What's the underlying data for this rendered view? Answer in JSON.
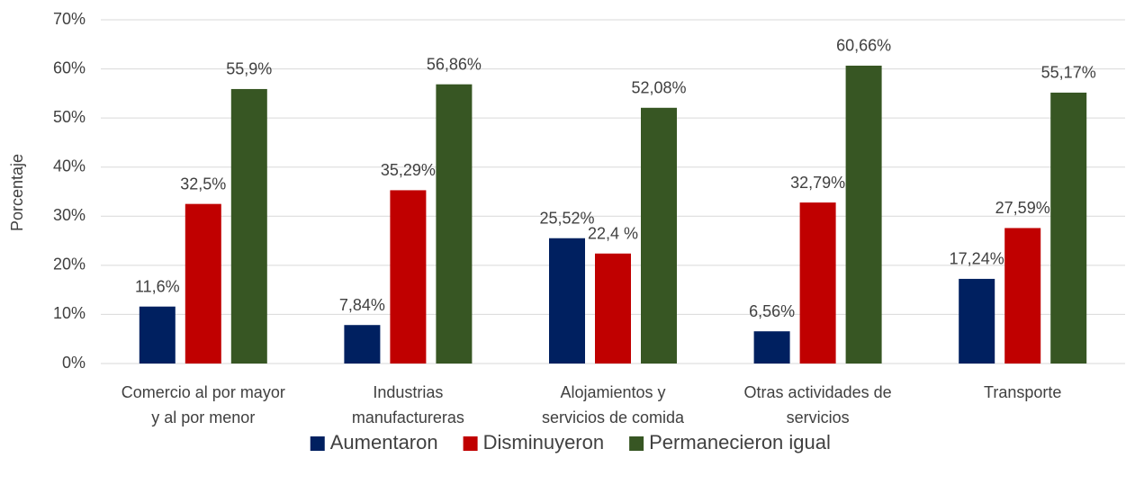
{
  "chart_data": {
    "type": "bar",
    "y_axis_label": "Porcentaje",
    "categories": [
      [
        "Comercio al por mayor",
        "y al por menor"
      ],
      [
        "Industrias",
        "manufactureras"
      ],
      [
        "Alojamientos y",
        "servicios de comida"
      ],
      [
        "Otras actividades de",
        "servicios"
      ],
      [
        "Transporte"
      ]
    ],
    "series": [
      {
        "name": "Aumentaron",
        "color": "#002060",
        "values": [
          11.6,
          7.84,
          25.52,
          6.56,
          17.24
        ],
        "value_labels": [
          "11,6%",
          "7,84%",
          "25,52%",
          "6,56%",
          "17,24%"
        ]
      },
      {
        "name": "Disminuyeron",
        "color": "#c00000",
        "values": [
          32.5,
          35.29,
          22.4,
          32.79,
          27.59
        ],
        "value_labels": [
          "32,5%",
          "35,29%",
          "22,4 %",
          "32,79%",
          "27,59%"
        ]
      },
      {
        "name": "Permanecieron igual",
        "color": "#375623",
        "values": [
          55.9,
          56.86,
          52.08,
          60.66,
          55.17
        ],
        "value_labels": [
          "55,9%",
          "56,86%",
          "52,08%",
          "60,66%",
          "55,17%"
        ]
      }
    ],
    "ylim": [
      0,
      70
    ],
    "yticks": [
      {
        "value": 0,
        "label": "0%"
      },
      {
        "value": 10,
        "label": "10%"
      },
      {
        "value": 20,
        "label": "20%"
      },
      {
        "value": 30,
        "label": "30%"
      },
      {
        "value": 40,
        "label": "40%"
      },
      {
        "value": 50,
        "label": "50%"
      },
      {
        "value": 60,
        "label": "60%"
      },
      {
        "value": 70,
        "label": "70%"
      }
    ],
    "grid": true,
    "legend": "bottom"
  }
}
